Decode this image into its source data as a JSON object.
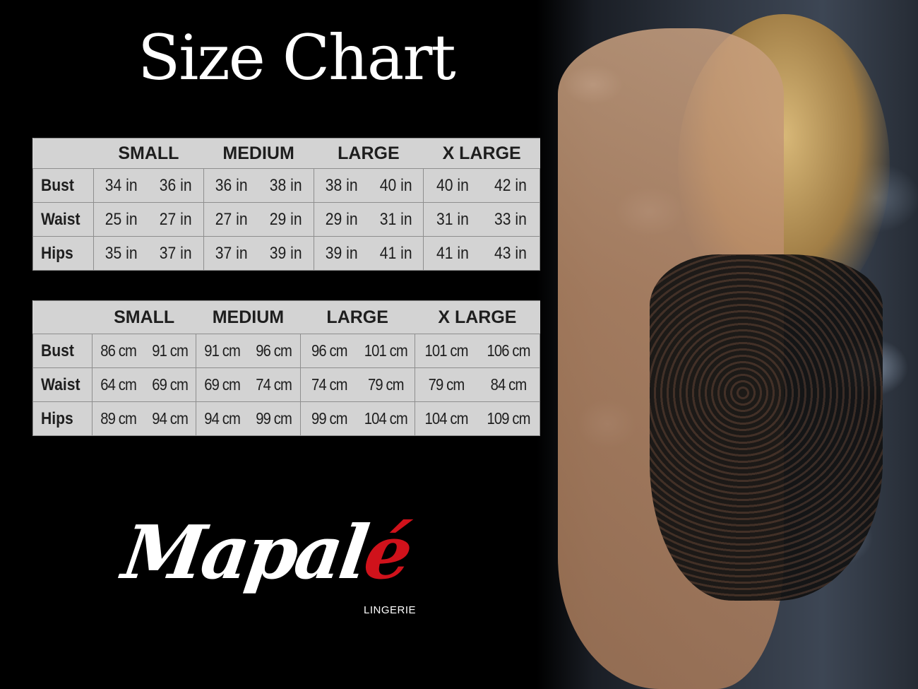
{
  "title": "Size Chart",
  "colors": {
    "background": "#000000",
    "table_fill": "#d3d3d3",
    "logo_accent": "#d0121b"
  },
  "sizes": [
    "SMALL",
    "MEDIUM",
    "LARGE",
    "X LARGE"
  ],
  "inches_table": {
    "rows": [
      {
        "label": "Bust",
        "values": [
          "34 in",
          "36 in",
          "36 in",
          "38 in",
          "38 in",
          "40 in",
          "40 in",
          "42 in"
        ]
      },
      {
        "label": "Waist",
        "values": [
          "25 in",
          "27 in",
          "27 in",
          "29 in",
          "29 in",
          "31 in",
          "31 in",
          "33 in"
        ]
      },
      {
        "label": "Hips",
        "values": [
          "35 in",
          "37 in",
          "37 in",
          "39 in",
          "39 in",
          "41 in",
          "41 in",
          "43 in"
        ]
      }
    ]
  },
  "cm_table": {
    "rows": [
      {
        "label": "Bust",
        "values": [
          "86 cm",
          "91 cm",
          "91 cm",
          "96 cm",
          "96 cm",
          "101 cm",
          "101 cm",
          "106 cm"
        ]
      },
      {
        "label": "Waist",
        "values": [
          "64 cm",
          "69 cm",
          "69 cm",
          "74 cm",
          "74 cm",
          "79  cm",
          "79 cm",
          "84 cm"
        ]
      },
      {
        "label": "Hips",
        "values": [
          "89 cm",
          "94 cm",
          "94 cm",
          "99 cm",
          "99 cm",
          "104 cm",
          "104 cm",
          "109 cm"
        ]
      }
    ]
  },
  "logo": {
    "text_main": "Mapal",
    "text_accent": "é",
    "tagline": "LINGERIE"
  }
}
